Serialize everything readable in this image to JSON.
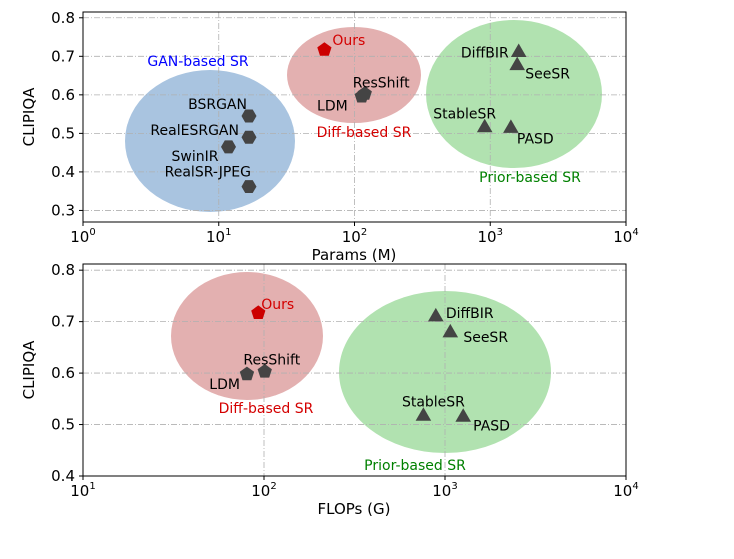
{
  "chart_data": [
    {
      "type": "scatter",
      "xlabel": "Params (M)",
      "ylabel": "CLIPIQA",
      "xscale": "log",
      "xlim": [
        1,
        10000
      ],
      "ylim": [
        0.27,
        0.815
      ],
      "xticks": [
        "10^0",
        "10^1",
        "10^2",
        "10^3",
        "10^4"
      ],
      "yticks": [
        "0.3",
        "0.4",
        "0.5",
        "0.6",
        "0.7",
        "0.8"
      ],
      "grid": true,
      "groups": [
        {
          "name": "GAN-based SR",
          "color": "#0000ff",
          "fill": "#a9c4e0"
        },
        {
          "name": "Diff-based SR",
          "color": "#d40000",
          "fill": "#e3b0b0"
        },
        {
          "name": "Prior-based SR",
          "color": "#008000",
          "fill": "#b1e2b0"
        }
      ],
      "points": [
        {
          "label": "Ours",
          "x": 60,
          "y": 0.717,
          "marker": "pentagon",
          "group": "Diff-based SR",
          "color": "#cc0000"
        },
        {
          "label": "LDM",
          "x": 113,
          "y": 0.596,
          "marker": "pentagon",
          "group": "Diff-based SR",
          "color": "#444444"
        },
        {
          "label": "ResShift",
          "x": 119,
          "y": 0.603,
          "marker": "pentagon",
          "group": "Diff-based SR",
          "color": "#444444"
        },
        {
          "label": "BSRGAN",
          "x": 16.7,
          "y": 0.545,
          "marker": "hexagon",
          "group": "GAN-based SR",
          "color": "#444444"
        },
        {
          "label": "RealESRGAN",
          "x": 16.7,
          "y": 0.49,
          "marker": "hexagon",
          "group": "GAN-based SR",
          "color": "#444444"
        },
        {
          "label": "SwinIR",
          "x": 11.8,
          "y": 0.465,
          "marker": "hexagon",
          "group": "GAN-based SR",
          "color": "#444444"
        },
        {
          "label": "RealSR-JPEG",
          "x": 16.7,
          "y": 0.362,
          "marker": "hexagon",
          "group": "GAN-based SR",
          "color": "#444444"
        },
        {
          "label": "DiffBIR",
          "x": 1620,
          "y": 0.715,
          "marker": "triangle",
          "group": "Prior-based SR",
          "color": "#444444"
        },
        {
          "label": "SeeSR",
          "x": 1580,
          "y": 0.681,
          "marker": "triangle",
          "group": "Prior-based SR",
          "color": "#444444"
        },
        {
          "label": "StableSR",
          "x": 910,
          "y": 0.52,
          "marker": "triangle",
          "group": "Prior-based SR",
          "color": "#444444"
        },
        {
          "label": "PASD",
          "x": 1420,
          "y": 0.518,
          "marker": "triangle",
          "group": "Prior-based SR",
          "color": "#444444"
        }
      ]
    },
    {
      "type": "scatter",
      "xlabel": "FLOPs (G)",
      "ylabel": "CLIPIQA",
      "xscale": "log",
      "xlim": [
        10,
        10000
      ],
      "ylim": [
        0.4,
        0.812
      ],
      "xticks": [
        "10^1",
        "10^2",
        "10^3",
        "10^4"
      ],
      "yticks": [
        "0.4",
        "0.5",
        "0.6",
        "0.7",
        "0.8"
      ],
      "grid": true,
      "groups": [
        {
          "name": "Diff-based SR",
          "color": "#d40000",
          "fill": "#e3b0b0"
        },
        {
          "name": "Prior-based SR",
          "color": "#008000",
          "fill": "#b1e2b0"
        }
      ],
      "points": [
        {
          "label": "Ours",
          "x": 93,
          "y": 0.717,
          "marker": "pentagon",
          "group": "Diff-based SR",
          "color": "#cc0000"
        },
        {
          "label": "LDM",
          "x": 80.5,
          "y": 0.598,
          "marker": "pentagon",
          "group": "Diff-based SR",
          "color": "#444444"
        },
        {
          "label": "ResShift",
          "x": 101,
          "y": 0.603,
          "marker": "pentagon",
          "group": "Diff-based SR",
          "color": "#444444"
        },
        {
          "label": "DiffBIR",
          "x": 890,
          "y": 0.713,
          "marker": "triangle",
          "group": "Prior-based SR",
          "color": "#444444"
        },
        {
          "label": "SeeSR",
          "x": 1070,
          "y": 0.682,
          "marker": "triangle",
          "group": "Prior-based SR",
          "color": "#444444"
        },
        {
          "label": "StableSR",
          "x": 760,
          "y": 0.52,
          "marker": "triangle",
          "group": "Prior-based SR",
          "color": "#444444"
        },
        {
          "label": "PASD",
          "x": 1260,
          "y": 0.518,
          "marker": "triangle",
          "group": "Prior-based SR",
          "color": "#444444"
        }
      ]
    }
  ]
}
